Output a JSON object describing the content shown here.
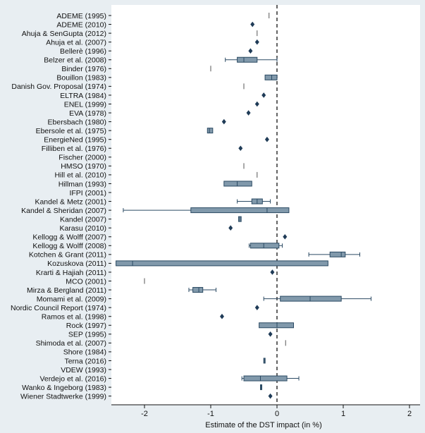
{
  "chart_data": {
    "type": "boxplot",
    "title": "",
    "xlabel": "Estimate of the DST impact (in %)",
    "ylabel": "",
    "xlim": [
      -2.5,
      2.1
    ],
    "xticks": [
      -2,
      -1,
      0,
      1,
      2
    ],
    "reference_line": 0,
    "colors": {
      "box_fill": "#8199ab",
      "box_stroke": "#2b4a63",
      "marker": "#1f3b57",
      "axis": "#111111",
      "plot_bg": "#ffffff",
      "page_bg": "#e8eef2"
    },
    "studies": [
      {
        "name": "ADEME (1995)",
        "kind": "line",
        "value": -0.12
      },
      {
        "name": "ADEME (2010)",
        "kind": "point",
        "value": -0.37
      },
      {
        "name": "Ahuja & SenGupta (2012)",
        "kind": "line",
        "value": -0.3
      },
      {
        "name": "Ahuja et al. (2007)",
        "kind": "point",
        "value": -0.3
      },
      {
        "name": "Bellerè (1996)",
        "kind": "point",
        "value": -0.4
      },
      {
        "name": "Belzer et al. (2008)",
        "kind": "box",
        "min": -0.78,
        "q1": -0.6,
        "median": -0.5,
        "q3": -0.3,
        "max": 0.0
      },
      {
        "name": "Binder (1976)",
        "kind": "line",
        "value": -1.0
      },
      {
        "name": "Bouillon (1983)",
        "kind": "box",
        "min": -0.18,
        "q1": -0.18,
        "median": -0.08,
        "q3": 0.0,
        "max": 0.0
      },
      {
        "name": "Danish Gov. Proposal (1974)",
        "kind": "line",
        "value": -0.5
      },
      {
        "name": "ELTRA (1984)",
        "kind": "point",
        "value": -0.2
      },
      {
        "name": "ENEL (1999)",
        "kind": "point",
        "value": -0.3
      },
      {
        "name": "EVA (1978)",
        "kind": "point",
        "value": -0.43
      },
      {
        "name": "Ebersbach (1980)",
        "kind": "point",
        "value": -0.8
      },
      {
        "name": "Ebersole et al. (1975)",
        "kind": "box",
        "min": -1.05,
        "q1": -1.05,
        "median": -1.02,
        "q3": -0.97,
        "max": -0.97
      },
      {
        "name": "EnergieNed (1995)",
        "kind": "point",
        "value": -0.15
      },
      {
        "name": "Filliben et al. (1976)",
        "kind": "point",
        "value": -0.55
      },
      {
        "name": "Fischer (2000)",
        "kind": "none"
      },
      {
        "name": "HMSO (1970)",
        "kind": "line",
        "value": -0.5
      },
      {
        "name": "Hill et al. (2010)",
        "kind": "line",
        "value": -0.3
      },
      {
        "name": "Hillman (1993)",
        "kind": "box",
        "min": -0.8,
        "q1": -0.8,
        "median": -0.6,
        "q3": -0.38,
        "max": -0.38
      },
      {
        "name": "IFPI (2001)",
        "kind": "none"
      },
      {
        "name": "Kandel & Metz (2001)",
        "kind": "box",
        "min": -0.6,
        "q1": -0.38,
        "median": -0.3,
        "q3": -0.22,
        "max": -0.1
      },
      {
        "name": "Kandel & Sheridan (2007)",
        "kind": "box",
        "min": -2.32,
        "q1": -1.3,
        "median": -0.15,
        "q3": 0.18,
        "max": 0.18
      },
      {
        "name": "Kandel (2007)",
        "kind": "box",
        "min": -0.58,
        "q1": -0.58,
        "median": -0.56,
        "q3": -0.54,
        "max": -0.54
      },
      {
        "name": "Karasu (2010)",
        "kind": "point",
        "value": -0.7
      },
      {
        "name": "Kellogg & Wolff (2007)",
        "kind": "point",
        "value": 0.12
      },
      {
        "name": "Kellogg & Wolff (2008)",
        "kind": "box",
        "min": -0.42,
        "q1": -0.4,
        "median": -0.2,
        "q3": 0.03,
        "max": 0.08
      },
      {
        "name": "Kotchen & Grant (2011)",
        "kind": "box",
        "min": 0.48,
        "q1": 0.8,
        "median": 0.97,
        "q3": 1.03,
        "max": 1.25
      },
      {
        "name": "Kozuskova (2011)",
        "kind": "box",
        "min": -2.43,
        "q1": -2.43,
        "median": -2.18,
        "q3": 0.77,
        "max": 0.77
      },
      {
        "name": "Krarti & Hajiah (2011)",
        "kind": "point",
        "value": -0.07
      },
      {
        "name": "MCO (2001)",
        "kind": "line",
        "value": -2.0
      },
      {
        "name": "Mirza & Bergland (2011)",
        "kind": "box",
        "min": -1.33,
        "q1": -1.27,
        "median": -1.18,
        "q3": -1.12,
        "max": -0.92
      },
      {
        "name": "Momami et al. (2009)",
        "kind": "box",
        "min": -0.2,
        "q1": 0.05,
        "median": 0.5,
        "q3": 0.97,
        "max": 1.42
      },
      {
        "name": "Nordic Council Report (1974)",
        "kind": "point",
        "value": -0.3
      },
      {
        "name": "Ramos et al. (1998)",
        "kind": "point",
        "value": -0.83
      },
      {
        "name": "Rock (1997)",
        "kind": "box",
        "min": -0.27,
        "q1": -0.27,
        "median": 0.0,
        "q3": 0.25,
        "max": 0.25
      },
      {
        "name": "SEP (1995)",
        "kind": "point",
        "value": -0.1
      },
      {
        "name": "Shimoda et al. (2007)",
        "kind": "line",
        "value": 0.13
      },
      {
        "name": "Shore (1984)",
        "kind": "none"
      },
      {
        "name": "Terna (2016)",
        "kind": "box",
        "min": -0.2,
        "q1": -0.2,
        "median": -0.19,
        "q3": -0.18,
        "max": -0.18
      },
      {
        "name": "VDEW (1993)",
        "kind": "none"
      },
      {
        "name": "Verdejo et al. (2016)",
        "kind": "box",
        "min": -0.53,
        "q1": -0.5,
        "median": -0.25,
        "q3": 0.15,
        "max": 0.33
      },
      {
        "name": "Wanko & Ingeborg (1983)",
        "kind": "box",
        "min": -0.25,
        "q1": -0.25,
        "median": -0.24,
        "q3": -0.23,
        "max": -0.23
      },
      {
        "name": "Wiener Stadtwerke (1999)",
        "kind": "point",
        "value": -0.1
      }
    ]
  }
}
